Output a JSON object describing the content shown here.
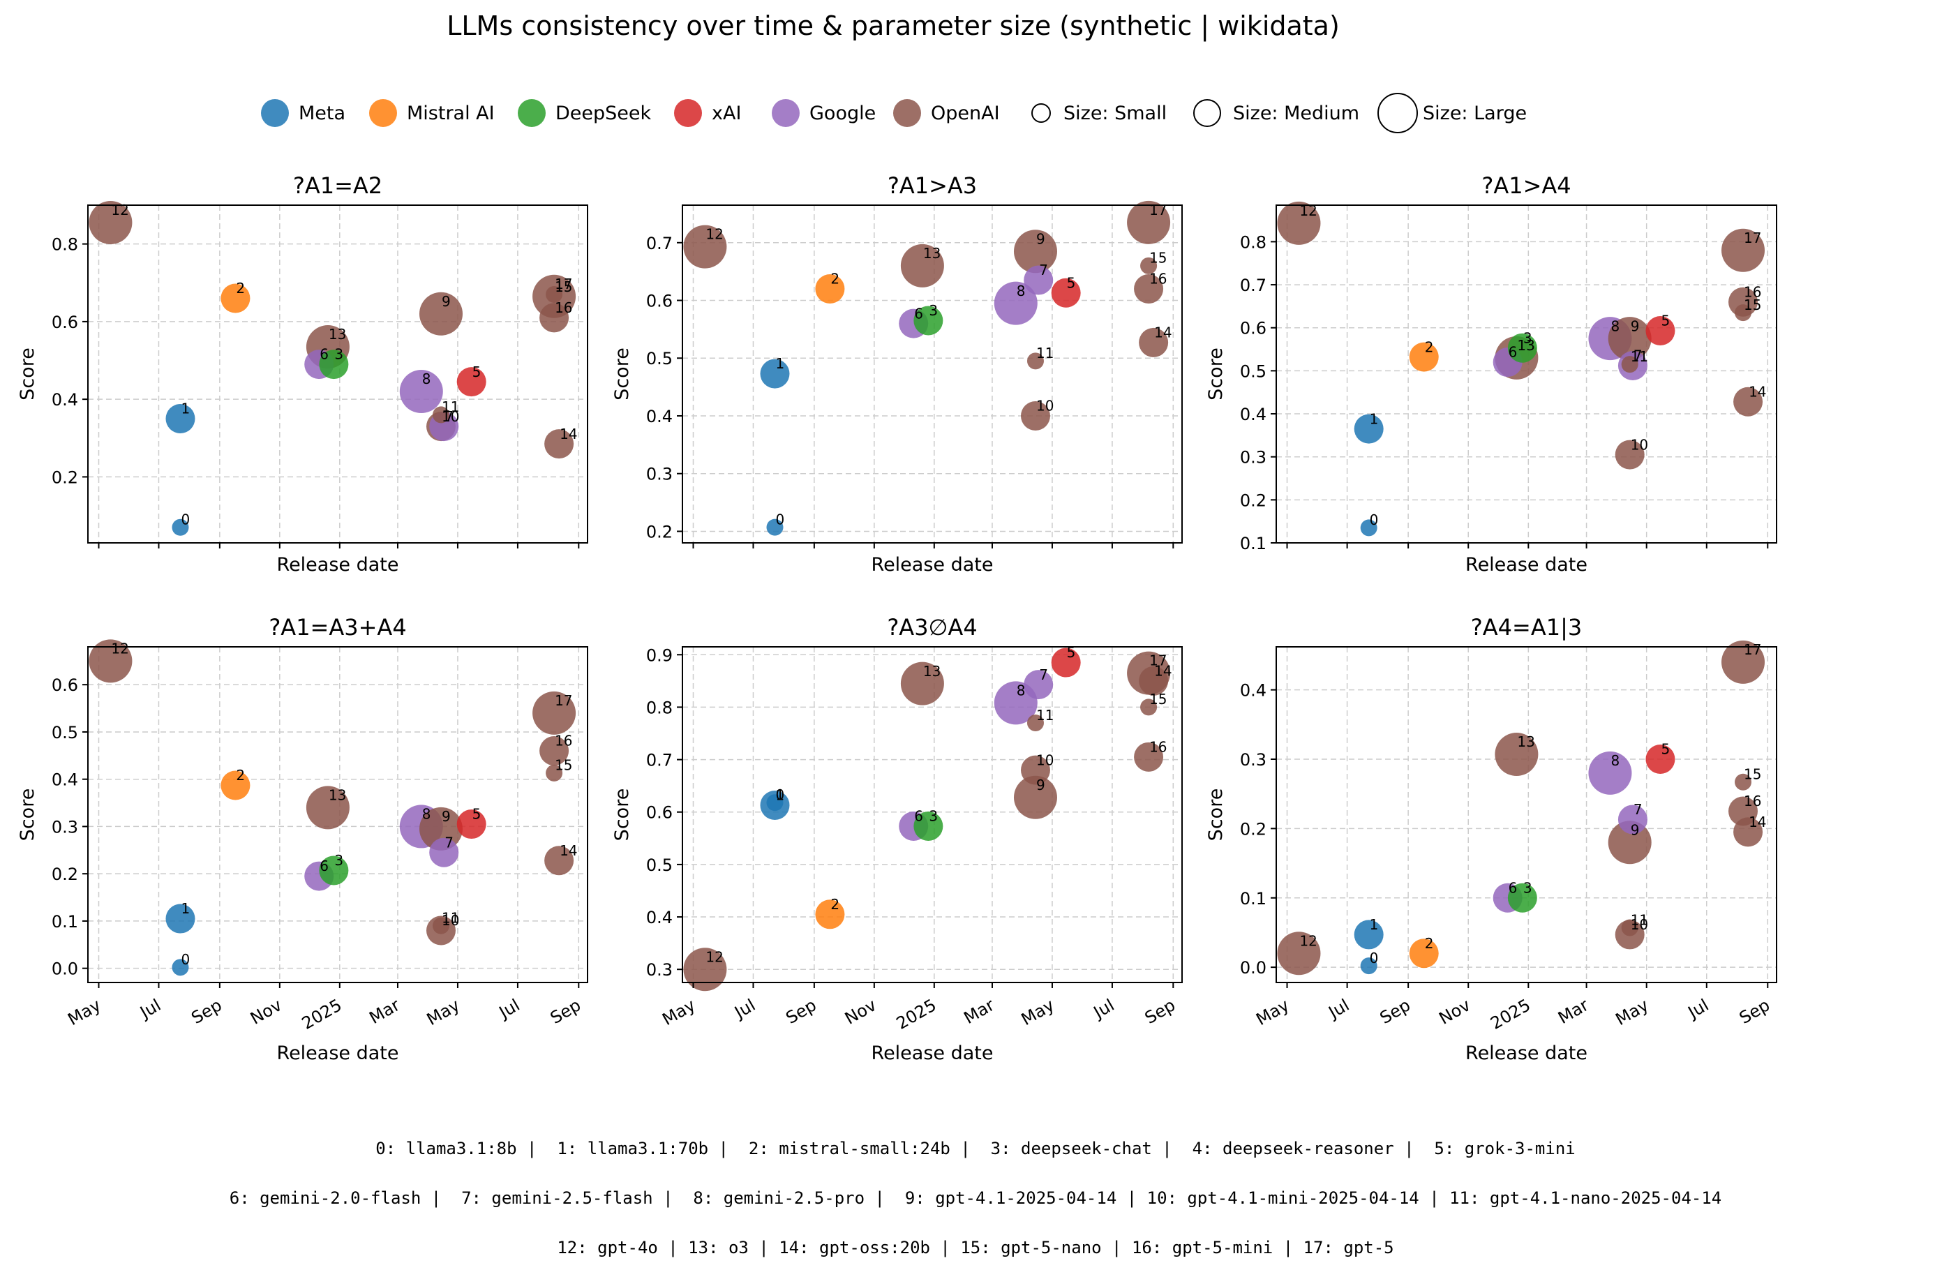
{
  "chart_title": "LLMs consistency over time & parameter size  (synthetic | wikidata)",
  "legend": {
    "companies": [
      {
        "name": "Meta",
        "color": "#1f77b4"
      },
      {
        "name": "Mistral AI",
        "color": "#ff7f0e"
      },
      {
        "name": "DeepSeek",
        "color": "#2ca02c"
      },
      {
        "name": "xAI",
        "color": "#d62728"
      },
      {
        "name": "Google",
        "color": "#9467bd"
      },
      {
        "name": "OpenAI",
        "color": "#8c564b"
      }
    ],
    "sizes": [
      {
        "name": "Size: Small",
        "size": "small"
      },
      {
        "name": "Size: Medium",
        "size": "medium"
      },
      {
        "name": "Size: Large",
        "size": "large"
      }
    ]
  },
  "chart_data": [
    {
      "type": "scatter",
      "title": "?A1=A2",
      "xlabel": "Release date",
      "ylabel": "Score",
      "xlim": [
        "2024-04-20",
        "2025-09-10"
      ],
      "ylim": [
        0.03,
        0.9
      ],
      "yticks": [
        0.2,
        0.4,
        0.6,
        0.8
      ],
      "show_xticklabels": false,
      "grid": true,
      "points": [
        {
          "id": "0",
          "x": "2024-07-23",
          "y": 0.07
        },
        {
          "id": "1",
          "x": "2024-07-23",
          "y": 0.35
        },
        {
          "id": "2",
          "x": "2024-09-17",
          "y": 0.66
        },
        {
          "id": "6",
          "x": "2024-12-11",
          "y": 0.49
        },
        {
          "id": "13",
          "x": "2024-12-20",
          "y": 0.535
        },
        {
          "id": "3",
          "x": "2024-12-26",
          "y": 0.49
        },
        {
          "id": "8",
          "x": "2025-03-25",
          "y": 0.42
        },
        {
          "id": "9",
          "x": "2025-04-14",
          "y": 0.62
        },
        {
          "id": "10",
          "x": "2025-04-14",
          "y": 0.33
        },
        {
          "id": "11",
          "x": "2025-04-14",
          "y": 0.36
        },
        {
          "id": "7",
          "x": "2025-04-17",
          "y": 0.33
        },
        {
          "id": "5",
          "x": "2025-05-15",
          "y": 0.445
        },
        {
          "id": "17",
          "x": "2025-08-07",
          "y": 0.665
        },
        {
          "id": "15",
          "x": "2025-08-07",
          "y": 0.67
        },
        {
          "id": "16",
          "x": "2025-08-07",
          "y": 0.61
        },
        {
          "id": "14",
          "x": "2025-08-12",
          "y": 0.285
        },
        {
          "id": "12",
          "x": "2024-05-13",
          "y": 0.855
        }
      ]
    },
    {
      "type": "scatter",
      "title": "?A1>A3",
      "xlabel": "Release date",
      "ylabel": "Score",
      "xlim": [
        "2024-04-20",
        "2025-09-10"
      ],
      "ylim": [
        0.18,
        0.765
      ],
      "yticks": [
        0.2,
        0.3,
        0.4,
        0.5,
        0.6,
        0.7
      ],
      "show_xticklabels": false,
      "grid": true,
      "points": [
        {
          "id": "0",
          "x": "2024-07-23",
          "y": 0.207
        },
        {
          "id": "1",
          "x": "2024-07-23",
          "y": 0.473
        },
        {
          "id": "2",
          "x": "2024-09-17",
          "y": 0.62
        },
        {
          "id": "6",
          "x": "2024-12-11",
          "y": 0.56
        },
        {
          "id": "13",
          "x": "2024-12-20",
          "y": 0.66
        },
        {
          "id": "3",
          "x": "2024-12-26",
          "y": 0.565
        },
        {
          "id": "8",
          "x": "2025-03-25",
          "y": 0.595
        },
        {
          "id": "9",
          "x": "2025-04-14",
          "y": 0.685
        },
        {
          "id": "11",
          "x": "2025-04-14",
          "y": 0.495
        },
        {
          "id": "10",
          "x": "2025-04-14",
          "y": 0.4
        },
        {
          "id": "7",
          "x": "2025-04-17",
          "y": 0.635
        },
        {
          "id": "5",
          "x": "2025-05-15",
          "y": 0.613
        },
        {
          "id": "17",
          "x": "2025-08-07",
          "y": 0.735
        },
        {
          "id": "15",
          "x": "2025-08-07",
          "y": 0.66
        },
        {
          "id": "16",
          "x": "2025-08-07",
          "y": 0.62
        },
        {
          "id": "14",
          "x": "2025-08-12",
          "y": 0.527
        },
        {
          "id": "12",
          "x": "2024-05-13",
          "y": 0.693
        }
      ]
    },
    {
      "type": "scatter",
      "title": "?A1>A4",
      "xlabel": "Release date",
      "ylabel": "Score",
      "xlim": [
        "2024-04-20",
        "2025-09-10"
      ],
      "ylim": [
        0.1,
        0.885
      ],
      "yticks": [
        0.1,
        0.2,
        0.3,
        0.4,
        0.5,
        0.6,
        0.7,
        0.8
      ],
      "show_xticklabels": false,
      "grid": true,
      "points": [
        {
          "id": "0",
          "x": "2024-07-23",
          "y": 0.135
        },
        {
          "id": "1",
          "x": "2024-07-23",
          "y": 0.365
        },
        {
          "id": "2",
          "x": "2024-09-17",
          "y": 0.532
        },
        {
          "id": "6",
          "x": "2024-12-11",
          "y": 0.52
        },
        {
          "id": "13",
          "x": "2024-12-20",
          "y": 0.53
        },
        {
          "id": "3",
          "x": "2024-12-26",
          "y": 0.553
        },
        {
          "id": "8",
          "x": "2025-03-25",
          "y": 0.575
        },
        {
          "id": "9",
          "x": "2025-04-14",
          "y": 0.575
        },
        {
          "id": "11",
          "x": "2025-04-14",
          "y": 0.515
        },
        {
          "id": "10",
          "x": "2025-04-14",
          "y": 0.305
        },
        {
          "id": "7",
          "x": "2025-04-17",
          "y": 0.512
        },
        {
          "id": "5",
          "x": "2025-05-15",
          "y": 0.593
        },
        {
          "id": "17",
          "x": "2025-08-07",
          "y": 0.78
        },
        {
          "id": "16",
          "x": "2025-08-07",
          "y": 0.66
        },
        {
          "id": "15",
          "x": "2025-08-07",
          "y": 0.635
        },
        {
          "id": "14",
          "x": "2025-08-12",
          "y": 0.428
        },
        {
          "id": "12",
          "x": "2024-05-13",
          "y": 0.843
        }
      ]
    },
    {
      "type": "scatter",
      "title": "?A1=A3+A4",
      "xlabel": "Release date",
      "ylabel": "Score",
      "xlim": [
        "2024-04-20",
        "2025-09-10"
      ],
      "ylim": [
        -0.03,
        0.68
      ],
      "yticks": [
        0.0,
        0.1,
        0.2,
        0.3,
        0.4,
        0.5,
        0.6
      ],
      "xticks": [
        "May",
        "Jul",
        "Sep",
        "Nov",
        "2025",
        "Mar",
        "May",
        "Jul",
        "Sep"
      ],
      "show_xticklabels": true,
      "grid": true,
      "points": [
        {
          "id": "0",
          "x": "2024-07-23",
          "y": 0.002
        },
        {
          "id": "1",
          "x": "2024-07-23",
          "y": 0.105
        },
        {
          "id": "2",
          "x": "2024-09-17",
          "y": 0.387
        },
        {
          "id": "6",
          "x": "2024-12-11",
          "y": 0.195
        },
        {
          "id": "13",
          "x": "2024-12-20",
          "y": 0.34
        },
        {
          "id": "3",
          "x": "2024-12-26",
          "y": 0.207
        },
        {
          "id": "8",
          "x": "2025-03-25",
          "y": 0.3
        },
        {
          "id": "9",
          "x": "2025-04-14",
          "y": 0.295
        },
        {
          "id": "11",
          "x": "2025-04-14",
          "y": 0.09
        },
        {
          "id": "10",
          "x": "2025-04-14",
          "y": 0.08
        },
        {
          "id": "7",
          "x": "2025-04-17",
          "y": 0.245
        },
        {
          "id": "5",
          "x": "2025-05-15",
          "y": 0.305
        },
        {
          "id": "17",
          "x": "2025-08-07",
          "y": 0.54
        },
        {
          "id": "16",
          "x": "2025-08-07",
          "y": 0.46
        },
        {
          "id": "15",
          "x": "2025-08-07",
          "y": 0.413
        },
        {
          "id": "14",
          "x": "2025-08-12",
          "y": 0.228
        },
        {
          "id": "12",
          "x": "2024-05-13",
          "y": 0.65
        }
      ]
    },
    {
      "type": "scatter",
      "title": "?A3∅A4",
      "xlabel": "Release date",
      "ylabel": "Score",
      "xlim": [
        "2024-04-20",
        "2025-09-10"
      ],
      "ylim": [
        0.275,
        0.915
      ],
      "yticks": [
        0.3,
        0.4,
        0.5,
        0.6,
        0.7,
        0.8,
        0.9
      ],
      "xticks": [
        "May",
        "Jul",
        "Sep",
        "Nov",
        "2025",
        "Mar",
        "May",
        "Jul",
        "Sep"
      ],
      "show_xticklabels": true,
      "grid": true,
      "points": [
        {
          "id": "0",
          "x": "2024-07-23",
          "y": 0.618
        },
        {
          "id": "1",
          "x": "2024-07-23",
          "y": 0.613
        },
        {
          "id": "2",
          "x": "2024-09-17",
          "y": 0.405
        },
        {
          "id": "6",
          "x": "2024-12-11",
          "y": 0.573
        },
        {
          "id": "13",
          "x": "2024-12-20",
          "y": 0.845
        },
        {
          "id": "3",
          "x": "2024-12-26",
          "y": 0.573
        },
        {
          "id": "8",
          "x": "2025-03-25",
          "y": 0.808
        },
        {
          "id": "9",
          "x": "2025-04-14",
          "y": 0.628
        },
        {
          "id": "11",
          "x": "2025-04-14",
          "y": 0.77
        },
        {
          "id": "10",
          "x": "2025-04-14",
          "y": 0.68
        },
        {
          "id": "7",
          "x": "2025-04-17",
          "y": 0.843
        },
        {
          "id": "5",
          "x": "2025-05-15",
          "y": 0.885
        },
        {
          "id": "17",
          "x": "2025-08-07",
          "y": 0.865
        },
        {
          "id": "14",
          "x": "2025-08-12",
          "y": 0.85
        },
        {
          "id": "15",
          "x": "2025-08-07",
          "y": 0.8
        },
        {
          "id": "16",
          "x": "2025-08-07",
          "y": 0.705
        },
        {
          "id": "12",
          "x": "2024-05-13",
          "y": 0.3
        }
      ]
    },
    {
      "type": "scatter",
      "title": "?A4=A1|3",
      "xlabel": "Release date",
      "ylabel": "Score",
      "xlim": [
        "2024-04-20",
        "2025-09-10"
      ],
      "ylim": [
        -0.022,
        0.462
      ],
      "yticks": [
        0.0,
        0.1,
        0.2,
        0.3,
        0.4
      ],
      "xticks": [
        "May",
        "Jul",
        "Sep",
        "Nov",
        "2025",
        "Mar",
        "May",
        "Jul",
        "Sep"
      ],
      "show_xticklabels": true,
      "grid": true,
      "points": [
        {
          "id": "0",
          "x": "2024-07-23",
          "y": 0.002
        },
        {
          "id": "1",
          "x": "2024-07-23",
          "y": 0.047
        },
        {
          "id": "2",
          "x": "2024-09-17",
          "y": 0.02
        },
        {
          "id": "6",
          "x": "2024-12-11",
          "y": 0.1
        },
        {
          "id": "13",
          "x": "2024-12-20",
          "y": 0.307
        },
        {
          "id": "3",
          "x": "2024-12-26",
          "y": 0.1
        },
        {
          "id": "8",
          "x": "2025-03-25",
          "y": 0.28
        },
        {
          "id": "9",
          "x": "2025-04-14",
          "y": 0.18
        },
        {
          "id": "11",
          "x": "2025-04-14",
          "y": 0.057
        },
        {
          "id": "10",
          "x": "2025-04-14",
          "y": 0.047
        },
        {
          "id": "7",
          "x": "2025-04-17",
          "y": 0.213
        },
        {
          "id": "5",
          "x": "2025-05-15",
          "y": 0.3
        },
        {
          "id": "17",
          "x": "2025-08-07",
          "y": 0.44
        },
        {
          "id": "15",
          "x": "2025-08-07",
          "y": 0.267
        },
        {
          "id": "16",
          "x": "2025-08-07",
          "y": 0.225
        },
        {
          "id": "14",
          "x": "2025-08-12",
          "y": 0.195
        },
        {
          "id": "12",
          "x": "2024-05-13",
          "y": 0.02
        }
      ]
    }
  ],
  "models": {
    "0": {
      "company": "Meta",
      "size": "small"
    },
    "1": {
      "company": "Meta",
      "size": "medium"
    },
    "2": {
      "company": "Mistral AI",
      "size": "medium"
    },
    "3": {
      "company": "DeepSeek",
      "size": "medium"
    },
    "5": {
      "company": "xAI",
      "size": "medium"
    },
    "6": {
      "company": "Google",
      "size": "medium"
    },
    "7": {
      "company": "Google",
      "size": "medium"
    },
    "8": {
      "company": "Google",
      "size": "large"
    },
    "9": {
      "company": "OpenAI",
      "size": "large"
    },
    "10": {
      "company": "OpenAI",
      "size": "medium"
    },
    "11": {
      "company": "OpenAI",
      "size": "small"
    },
    "12": {
      "company": "OpenAI",
      "size": "large"
    },
    "13": {
      "company": "OpenAI",
      "size": "large"
    },
    "14": {
      "company": "OpenAI",
      "size": "medium"
    },
    "15": {
      "company": "OpenAI",
      "size": "small"
    },
    "16": {
      "company": "OpenAI",
      "size": "medium"
    },
    "17": {
      "company": "OpenAI",
      "size": "large"
    }
  },
  "footer": {
    "line1": "0: llama3.1:8b |  1: llama3.1:70b |  2: mistral-small:24b |  3: deepseek-chat |  4: deepseek-reasoner |  5: grok-3-mini",
    "line2": "6: gemini-2.0-flash |  7: gemini-2.5-flash |  8: gemini-2.5-pro |  9: gpt-4.1-2025-04-14 | 10: gpt-4.1-mini-2025-04-14 | 11: gpt-4.1-nano-2025-04-14",
    "line3": "12: gpt-4o | 13: o3 | 14: gpt-oss:20b | 15: gpt-5-nano | 16: gpt-5-mini | 17: gpt-5"
  }
}
